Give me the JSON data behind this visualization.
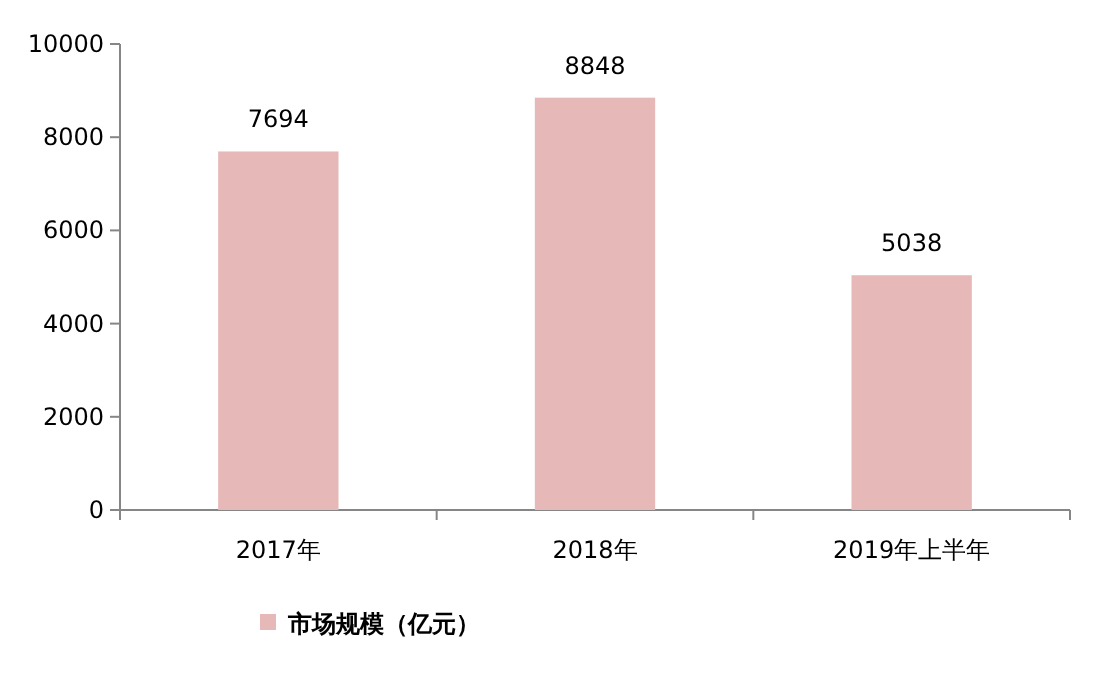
{
  "chart_data": {
    "type": "bar",
    "categories": [
      "2017年",
      "2018年",
      "2019年上半年"
    ],
    "series": [
      {
        "name": "市场规模（亿元）",
        "color": "#e6b9b8",
        "values": [
          7694,
          8848,
          5038
        ]
      }
    ],
    "ylim": [
      0,
      10000
    ],
    "yticks": [
      0,
      2000,
      4000,
      6000,
      8000,
      10000
    ],
    "data_labels": true,
    "legend": "bottom"
  }
}
